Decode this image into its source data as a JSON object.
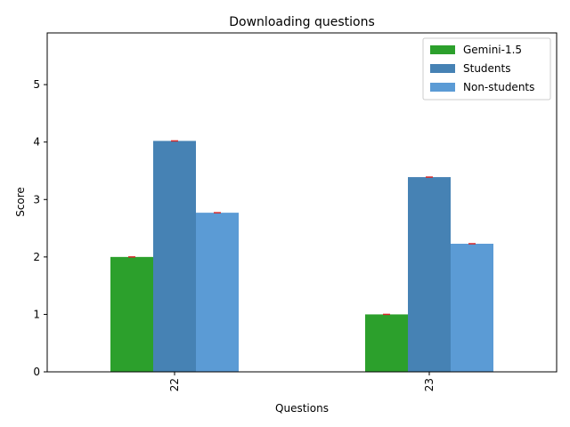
{
  "chart_data": {
    "type": "bar",
    "title": "Downloading questions",
    "xlabel": "Questions",
    "ylabel": "Score",
    "categories": [
      "22",
      "23"
    ],
    "series": [
      {
        "name": "Gemini-1.5",
        "values": [
          2.0,
          1.0
        ],
        "color": "#2ca02c"
      },
      {
        "name": "Students",
        "values": [
          4.02,
          3.39
        ],
        "color": "#4682b4"
      },
      {
        "name": "Non-students",
        "values": [
          2.77,
          2.23
        ],
        "color": "#5b9bd5"
      }
    ],
    "error_bar_color": "#d62728",
    "ylim": [
      0,
      5.9
    ],
    "yticks": [
      0,
      1,
      2,
      3,
      4,
      5
    ],
    "grid": false,
    "legend_position": "top-right",
    "xtick_rotation": 90
  }
}
